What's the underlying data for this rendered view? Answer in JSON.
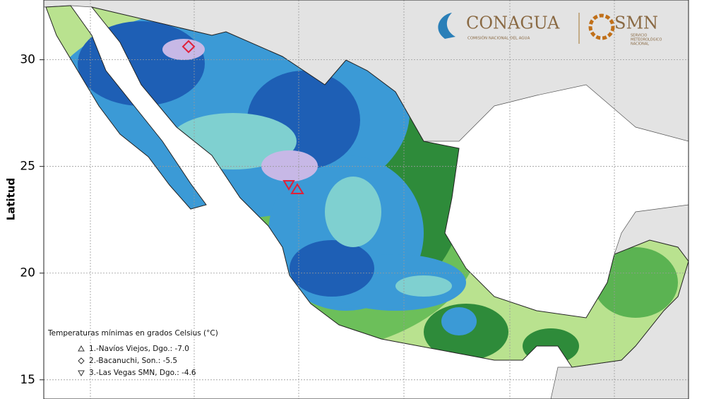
{
  "y_axis": {
    "label": "Latitud",
    "ylim": [
      14.1,
      32.8
    ],
    "yticks": [
      15,
      20,
      25,
      30
    ]
  },
  "logos": {
    "conagua": "CONAGUA",
    "conagua_subtitle": "COMISIÓN NACIONAL DEL AGUA",
    "smn": "SMN",
    "smn_subtitle": [
      "SERVICIO",
      "METEOROLÓGICO",
      "NACIONAL"
    ]
  },
  "legend": {
    "title": "Temperaturas mínimas en grados Celsius (°C)",
    "entries": [
      "1.-Navíos Viejos, Dgo.: -7.0",
      "2.-Bacanuchi, Son.: -5.5",
      "3.-Las Vegas SMN, Dgo.: -4.6"
    ]
  }
}
